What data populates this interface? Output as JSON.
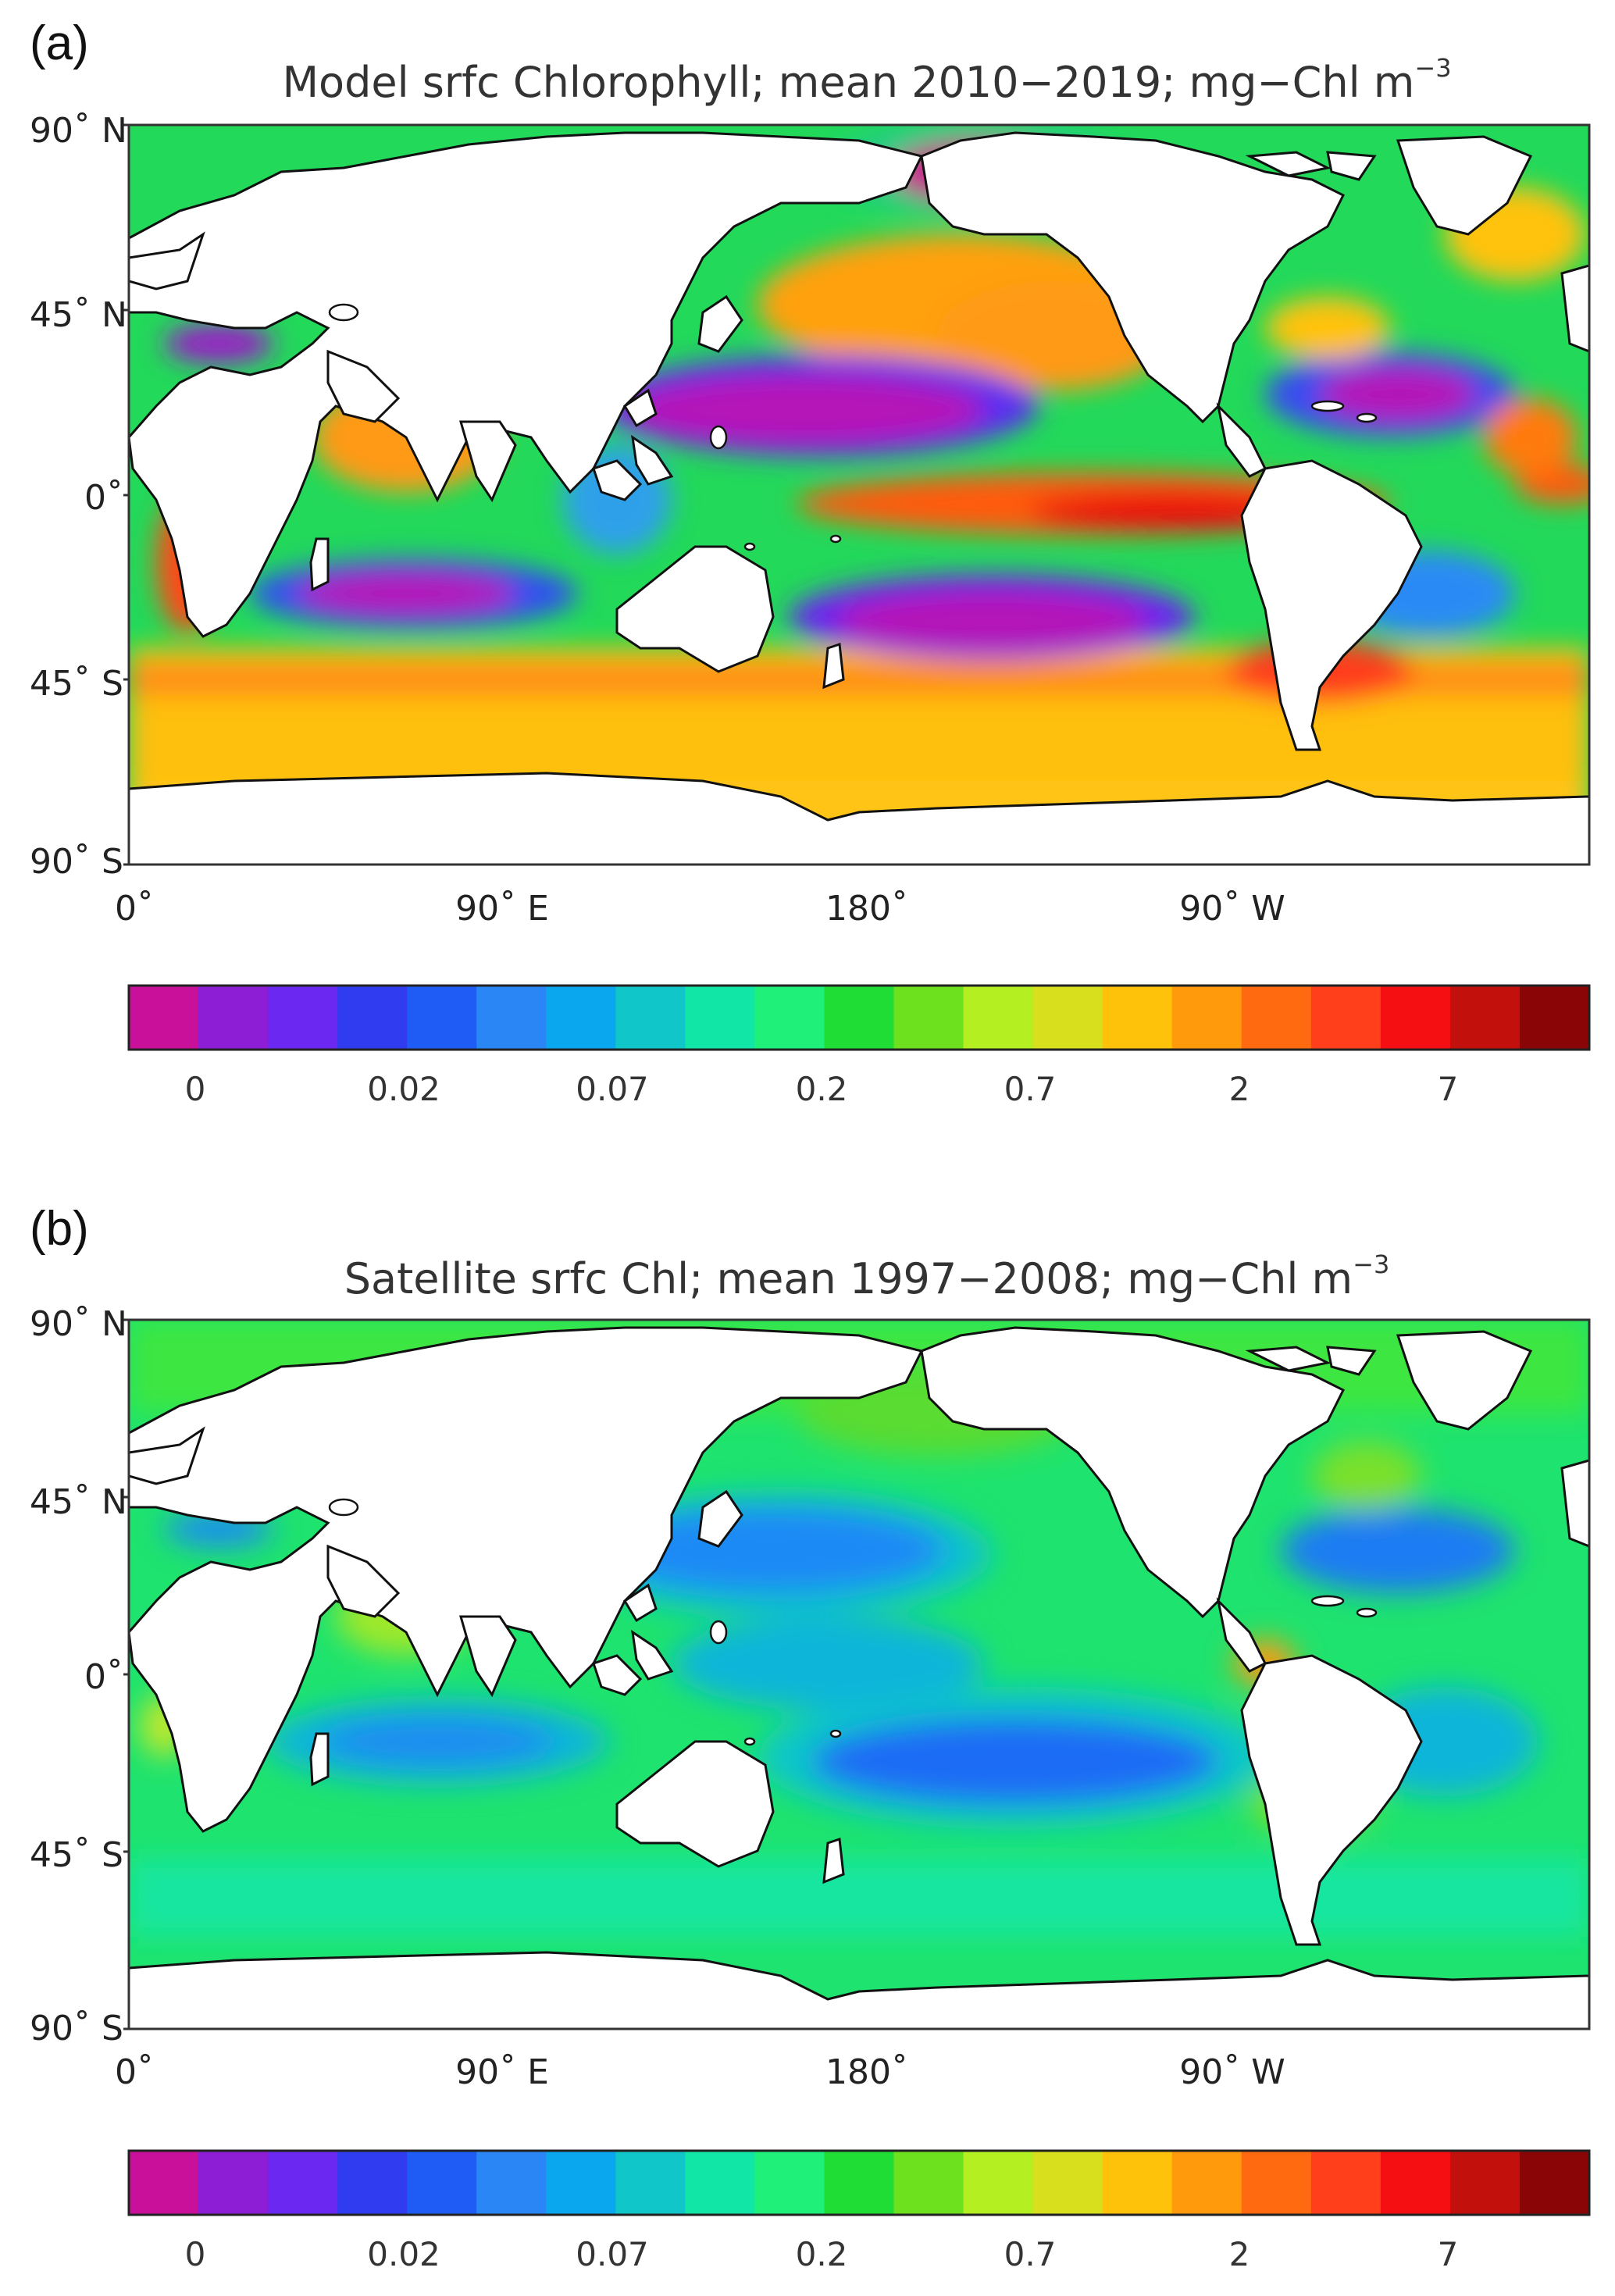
{
  "panels": [
    {
      "id": "a",
      "letter": "(a)",
      "title": "Model srfc Chlorophyll; mean 2010−2019; mg−Chl m",
      "title_sup": "−3",
      "lat_labels": [
        "90˚ N",
        "45˚ N",
        "0˚",
        "45˚ S",
        "90˚ S"
      ],
      "lon_labels": [
        "0˚",
        "90˚ E",
        "180˚",
        "90˚ W"
      ],
      "colorbar_ticks": [
        "0",
        "0.02",
        "0.07",
        "0.2",
        "0.7",
        "2",
        "7"
      ],
      "chart_data": {
        "type": "heatmap",
        "title": "Model srfc Chlorophyll; mean 2010−2019; mg−Chl m−3",
        "x_range": [
          0,
          360
        ],
        "y_range": [
          -90,
          90
        ],
        "colorbar_ticks": [
          "0",
          "0.02",
          "0.07",
          "0.2",
          "0.7",
          "2",
          "7"
        ]
      }
    },
    {
      "id": "b",
      "letter": "(b)",
      "title": "Satellite srfc Chl; mean 1997−2008; mg−Chl m",
      "title_sup": "−3",
      "lat_labels": [
        "90˚ N",
        "45˚ N",
        "0˚",
        "45˚ S",
        "90˚ S"
      ],
      "lon_labels": [
        "0˚",
        "90˚ E",
        "180˚",
        "90˚ W"
      ],
      "colorbar_ticks": [
        "0",
        "0.02",
        "0.07",
        "0.2",
        "0.7",
        "2",
        "7"
      ],
      "chart_data": {
        "type": "heatmap",
        "title": "Satellite srfc Chl; mean 1997−2008; mg−Chl m−3",
        "x_range": [
          0,
          360
        ],
        "y_range": [
          -90,
          90
        ],
        "colorbar_ticks": [
          "0",
          "0.02",
          "0.07",
          "0.2",
          "0.7",
          "2",
          "7"
        ]
      }
    }
  ],
  "colorbar_colors": [
    "#c8109a",
    "#8e1ed6",
    "#6a28f0",
    "#2f3cf0",
    "#1f5cf5",
    "#2a86f5",
    "#0aa6ee",
    "#10c6c8",
    "#12e6a6",
    "#1ff07a",
    "#20dd35",
    "#6ee11f",
    "#b4ef21",
    "#d8e01e",
    "#ffc20b",
    "#ff9a0d",
    "#ff6a10",
    "#ff3e1c",
    "#f50f12",
    "#c2100c",
    "#8a0606"
  ],
  "legend": {
    "colorbar_ticks": [
      "0",
      "0.02",
      "0.07",
      "0.2",
      "0.7",
      "2",
      "7"
    ]
  }
}
